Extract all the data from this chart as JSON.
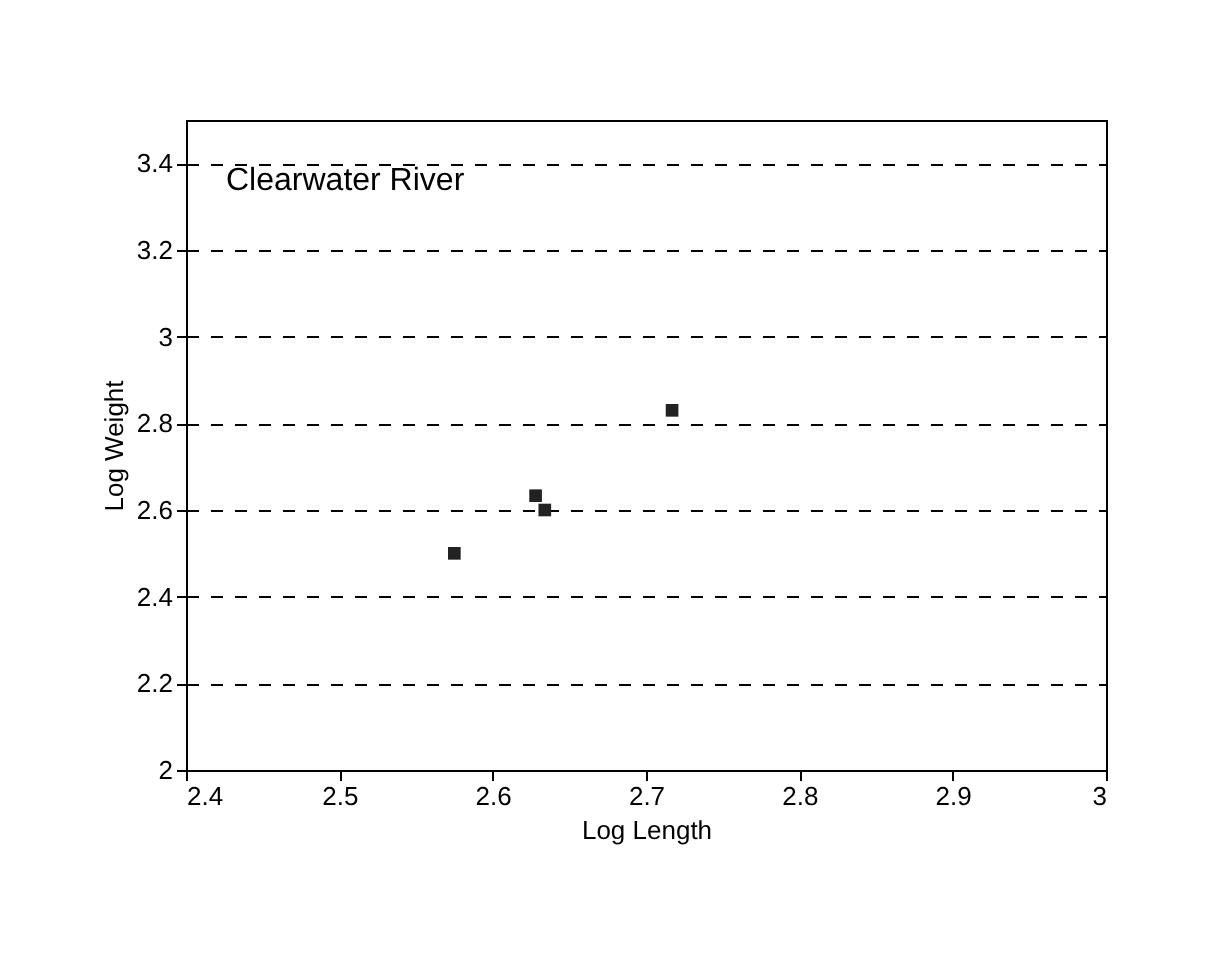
{
  "chart_data": {
    "type": "scatter",
    "xlabel": "Log Length",
    "ylabel": "Log Weight",
    "annotations": [
      "Clearwater River"
    ],
    "x": [
      2.575,
      2.628,
      2.634,
      2.717
    ],
    "series": [
      {
        "color": "#222222",
        "values": [
          2.5,
          2.633,
          2.6,
          2.83
        ]
      }
    ],
    "xlim": [
      2.4,
      3.0
    ],
    "xticks": [
      2.4,
      2.5,
      2.6,
      2.7,
      2.8,
      2.9,
      3
    ],
    "ylim": [
      2,
      3.5
    ],
    "yticks": [
      2,
      2.2,
      2.4,
      2.6,
      2.8,
      3,
      3.2,
      3.4
    ],
    "grid": "y",
    "marker": "square",
    "line_style": "dashed",
    "legend": false
  }
}
